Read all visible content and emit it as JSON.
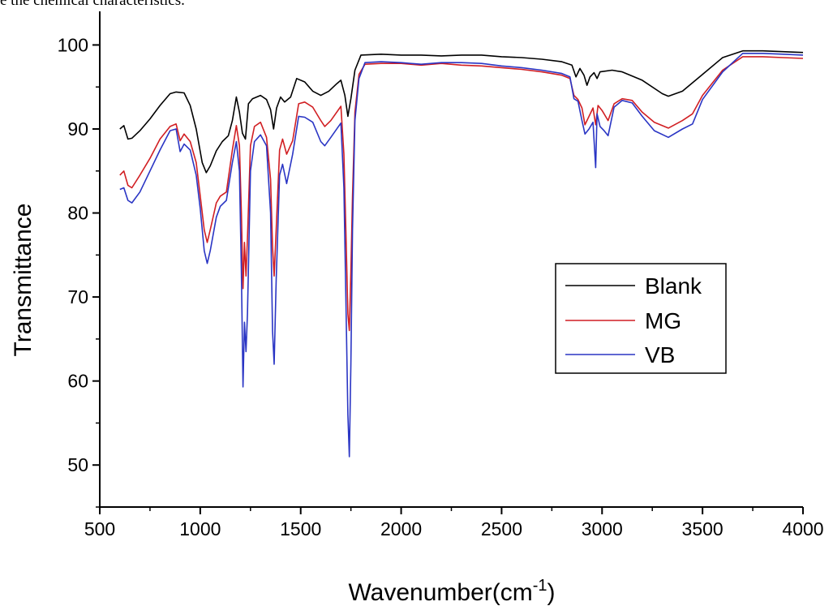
{
  "caption": "e the chemical characteristics.",
  "chart_data": {
    "type": "line",
    "xlabel": "Wavenumber(cm",
    "xlabel_sup": "-1",
    "xlabel_end": ")",
    "ylabel": "Transmittance",
    "xlim": [
      500,
      4000
    ],
    "ylim": [
      45,
      104
    ],
    "xticks": [
      500,
      1000,
      1500,
      2000,
      2500,
      3000,
      3500,
      4000
    ],
    "yticks": [
      50,
      60,
      70,
      80,
      90,
      100
    ],
    "legend_position": "right-center",
    "series": [
      {
        "name": "Blank",
        "color": "#000000",
        "points": [
          [
            600,
            90.0
          ],
          [
            620,
            90.4
          ],
          [
            640,
            88.8
          ],
          [
            660,
            88.9
          ],
          [
            700,
            89.8
          ],
          [
            750,
            91.2
          ],
          [
            800,
            92.8
          ],
          [
            850,
            94.2
          ],
          [
            880,
            94.4
          ],
          [
            920,
            94.3
          ],
          [
            950,
            92.8
          ],
          [
            980,
            90.0
          ],
          [
            1010,
            86.0
          ],
          [
            1030,
            84.8
          ],
          [
            1050,
            85.6
          ],
          [
            1080,
            87.4
          ],
          [
            1110,
            88.5
          ],
          [
            1140,
            89.2
          ],
          [
            1160,
            91.0
          ],
          [
            1180,
            93.8
          ],
          [
            1195,
            92.0
          ],
          [
            1210,
            89.5
          ],
          [
            1225,
            88.8
          ],
          [
            1240,
            93.0
          ],
          [
            1260,
            93.6
          ],
          [
            1300,
            94.0
          ],
          [
            1330,
            93.5
          ],
          [
            1350,
            92.3
          ],
          [
            1365,
            90.0
          ],
          [
            1380,
            92.5
          ],
          [
            1400,
            93.8
          ],
          [
            1420,
            93.2
          ],
          [
            1450,
            93.8
          ],
          [
            1480,
            96.0
          ],
          [
            1520,
            95.6
          ],
          [
            1560,
            94.5
          ],
          [
            1600,
            94.0
          ],
          [
            1640,
            94.5
          ],
          [
            1680,
            95.4
          ],
          [
            1700,
            95.8
          ],
          [
            1720,
            94.0
          ],
          [
            1735,
            91.5
          ],
          [
            1750,
            93.6
          ],
          [
            1770,
            97.0
          ],
          [
            1800,
            98.8
          ],
          [
            1900,
            98.9
          ],
          [
            2000,
            98.8
          ],
          [
            2100,
            98.8
          ],
          [
            2200,
            98.7
          ],
          [
            2300,
            98.8
          ],
          [
            2400,
            98.8
          ],
          [
            2500,
            98.6
          ],
          [
            2600,
            98.5
          ],
          [
            2700,
            98.3
          ],
          [
            2800,
            98.0
          ],
          [
            2850,
            97.6
          ],
          [
            2870,
            96.2
          ],
          [
            2890,
            97.2
          ],
          [
            2910,
            96.4
          ],
          [
            2925,
            95.2
          ],
          [
            2940,
            96.2
          ],
          [
            2960,
            96.7
          ],
          [
            2975,
            96.0
          ],
          [
            2990,
            96.8
          ],
          [
            3050,
            97.0
          ],
          [
            3100,
            96.8
          ],
          [
            3200,
            95.8
          ],
          [
            3300,
            94.2
          ],
          [
            3330,
            93.9
          ],
          [
            3400,
            94.5
          ],
          [
            3500,
            96.5
          ],
          [
            3600,
            98.5
          ],
          [
            3700,
            99.3
          ],
          [
            3800,
            99.3
          ],
          [
            3900,
            99.2
          ],
          [
            4000,
            99.1
          ]
        ]
      },
      {
        "name": "MG",
        "color": "#d11f23",
        "points": [
          [
            600,
            84.5
          ],
          [
            620,
            85.0
          ],
          [
            640,
            83.3
          ],
          [
            660,
            83.0
          ],
          [
            700,
            84.5
          ],
          [
            750,
            86.5
          ],
          [
            800,
            88.8
          ],
          [
            850,
            90.3
          ],
          [
            880,
            90.6
          ],
          [
            900,
            88.6
          ],
          [
            920,
            89.4
          ],
          [
            950,
            88.5
          ],
          [
            980,
            86.0
          ],
          [
            1000,
            82.0
          ],
          [
            1020,
            78.0
          ],
          [
            1035,
            76.5
          ],
          [
            1050,
            78.0
          ],
          [
            1080,
            81.2
          ],
          [
            1100,
            82.0
          ],
          [
            1130,
            82.5
          ],
          [
            1160,
            87.5
          ],
          [
            1180,
            90.4
          ],
          [
            1195,
            88.0
          ],
          [
            1205,
            80.0
          ],
          [
            1213,
            71.0
          ],
          [
            1220,
            76.5
          ],
          [
            1228,
            72.5
          ],
          [
            1235,
            77.0
          ],
          [
            1250,
            88.0
          ],
          [
            1270,
            90.3
          ],
          [
            1300,
            90.8
          ],
          [
            1330,
            89.0
          ],
          [
            1350,
            84.0
          ],
          [
            1360,
            76.0
          ],
          [
            1368,
            72.5
          ],
          [
            1378,
            78.0
          ],
          [
            1395,
            87.5
          ],
          [
            1410,
            88.8
          ],
          [
            1430,
            87.0
          ],
          [
            1460,
            88.6
          ],
          [
            1490,
            93.0
          ],
          [
            1520,
            93.2
          ],
          [
            1560,
            92.6
          ],
          [
            1600,
            91.0
          ],
          [
            1620,
            90.3
          ],
          [
            1650,
            91.0
          ],
          [
            1700,
            92.7
          ],
          [
            1715,
            87.0
          ],
          [
            1725,
            78.0
          ],
          [
            1735,
            68.0
          ],
          [
            1742,
            66.0
          ],
          [
            1750,
            73.0
          ],
          [
            1758,
            82.0
          ],
          [
            1770,
            92.0
          ],
          [
            1790,
            96.5
          ],
          [
            1820,
            97.7
          ],
          [
            1900,
            97.8
          ],
          [
            2000,
            97.8
          ],
          [
            2100,
            97.6
          ],
          [
            2200,
            97.8
          ],
          [
            2300,
            97.6
          ],
          [
            2400,
            97.5
          ],
          [
            2500,
            97.3
          ],
          [
            2600,
            97.1
          ],
          [
            2700,
            96.8
          ],
          [
            2800,
            96.4
          ],
          [
            2840,
            96.0
          ],
          [
            2860,
            94.0
          ],
          [
            2880,
            93.5
          ],
          [
            2900,
            92.5
          ],
          [
            2915,
            90.5
          ],
          [
            2935,
            91.5
          ],
          [
            2955,
            92.5
          ],
          [
            2968,
            90.5
          ],
          [
            2980,
            92.8
          ],
          [
            3000,
            92.2
          ],
          [
            3030,
            91.0
          ],
          [
            3060,
            93.0
          ],
          [
            3100,
            93.6
          ],
          [
            3150,
            93.4
          ],
          [
            3200,
            92.0
          ],
          [
            3260,
            90.8
          ],
          [
            3330,
            90.1
          ],
          [
            3400,
            91.0
          ],
          [
            3450,
            91.8
          ],
          [
            3500,
            94.0
          ],
          [
            3600,
            97.0
          ],
          [
            3700,
            98.6
          ],
          [
            3800,
            98.6
          ],
          [
            3900,
            98.5
          ],
          [
            4000,
            98.4
          ]
        ]
      },
      {
        "name": "VB",
        "color": "#2a35c4",
        "points": [
          [
            600,
            82.8
          ],
          [
            620,
            83.0
          ],
          [
            640,
            81.5
          ],
          [
            660,
            81.2
          ],
          [
            700,
            82.5
          ],
          [
            750,
            85.0
          ],
          [
            800,
            87.5
          ],
          [
            850,
            89.8
          ],
          [
            880,
            90.0
          ],
          [
            900,
            87.3
          ],
          [
            920,
            88.2
          ],
          [
            950,
            87.5
          ],
          [
            980,
            84.5
          ],
          [
            1000,
            80.5
          ],
          [
            1020,
            75.5
          ],
          [
            1035,
            74.0
          ],
          [
            1050,
            75.5
          ],
          [
            1080,
            79.5
          ],
          [
            1100,
            80.8
          ],
          [
            1130,
            81.5
          ],
          [
            1160,
            86.0
          ],
          [
            1180,
            88.5
          ],
          [
            1195,
            85.0
          ],
          [
            1205,
            73.0
          ],
          [
            1213,
            59.3
          ],
          [
            1220,
            67.0
          ],
          [
            1228,
            63.5
          ],
          [
            1235,
            68.0
          ],
          [
            1250,
            85.0
          ],
          [
            1270,
            88.5
          ],
          [
            1300,
            89.3
          ],
          [
            1330,
            88.0
          ],
          [
            1350,
            80.0
          ],
          [
            1360,
            66.0
          ],
          [
            1368,
            62.0
          ],
          [
            1378,
            72.0
          ],
          [
            1395,
            84.5
          ],
          [
            1410,
            85.8
          ],
          [
            1430,
            83.5
          ],
          [
            1460,
            87.0
          ],
          [
            1490,
            91.5
          ],
          [
            1520,
            91.4
          ],
          [
            1560,
            90.8
          ],
          [
            1600,
            88.5
          ],
          [
            1620,
            88.0
          ],
          [
            1650,
            89.0
          ],
          [
            1700,
            90.7
          ],
          [
            1715,
            83.0
          ],
          [
            1725,
            70.0
          ],
          [
            1735,
            56.0
          ],
          [
            1742,
            51.0
          ],
          [
            1750,
            62.0
          ],
          [
            1758,
            78.0
          ],
          [
            1770,
            91.0
          ],
          [
            1790,
            96.0
          ],
          [
            1820,
            97.9
          ],
          [
            1900,
            98.0
          ],
          [
            2000,
            97.9
          ],
          [
            2100,
            97.7
          ],
          [
            2200,
            97.9
          ],
          [
            2300,
            97.9
          ],
          [
            2400,
            97.8
          ],
          [
            2500,
            97.5
          ],
          [
            2600,
            97.3
          ],
          [
            2700,
            97.0
          ],
          [
            2800,
            96.6
          ],
          [
            2840,
            96.2
          ],
          [
            2860,
            93.6
          ],
          [
            2880,
            93.3
          ],
          [
            2900,
            91.0
          ],
          [
            2915,
            89.4
          ],
          [
            2935,
            90.0
          ],
          [
            2955,
            90.8
          ],
          [
            2968,
            85.4
          ],
          [
            2975,
            91.8
          ],
          [
            2990,
            90.3
          ],
          [
            3010,
            89.8
          ],
          [
            3030,
            89.2
          ],
          [
            3060,
            92.6
          ],
          [
            3100,
            93.4
          ],
          [
            3150,
            93.1
          ],
          [
            3200,
            91.5
          ],
          [
            3260,
            89.8
          ],
          [
            3330,
            89.0
          ],
          [
            3400,
            90.0
          ],
          [
            3450,
            90.6
          ],
          [
            3500,
            93.5
          ],
          [
            3600,
            96.8
          ],
          [
            3700,
            99.0
          ],
          [
            3800,
            99.0
          ],
          [
            3900,
            98.9
          ],
          [
            4000,
            98.8
          ]
        ]
      }
    ]
  }
}
